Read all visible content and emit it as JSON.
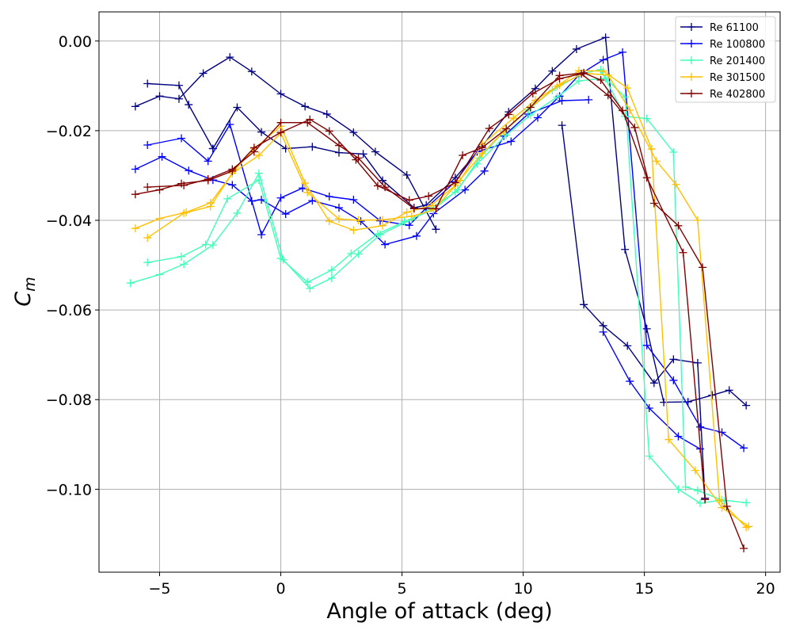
{
  "chart_data": {
    "type": "line",
    "title": "",
    "xlabel": "Angle of attack (deg)",
    "ylabel": "C",
    "ylabel_subscript": "m",
    "xlim": [
      -7.5,
      20.6
    ],
    "ylim": [
      -0.1185,
      0.0065
    ],
    "x_ticks": [
      -5,
      0,
      5,
      10,
      15,
      20
    ],
    "x_tick_labels": [
      "−5",
      "0",
      "5",
      "10",
      "15",
      "20"
    ],
    "y_ticks": [
      0.0,
      -0.02,
      -0.04,
      -0.06,
      -0.08,
      -0.1
    ],
    "y_tick_labels": [
      "0.00",
      "−0.02",
      "−0.04",
      "−0.06",
      "−0.08",
      "−0.10"
    ],
    "grid": true,
    "legend_position": "top-right",
    "marker": "plus",
    "series": [
      {
        "name": "Re 61100",
        "color": "#000080",
        "branches": [
          {
            "x": [
              -5.5,
              -4.2,
              -3.8,
              -2.8
            ],
            "y": [
              -0.0095,
              -0.0099,
              -0.0142,
              -0.024
            ]
          },
          {
            "x": [
              -6.0,
              -5.0,
              -4.2,
              -3.2,
              -2.1,
              -1.2,
              0.0,
              1.0,
              1.9,
              3.0,
              3.9,
              5.2,
              6.4
            ],
            "y": [
              -0.0146,
              -0.0123,
              -0.0129,
              -0.0072,
              -0.0036,
              -0.0068,
              -0.0118,
              -0.0146,
              -0.0163,
              -0.0204,
              -0.0247,
              -0.0299,
              -0.042
            ]
          },
          {
            "x": [
              -2.8,
              -1.8,
              -0.8,
              0.2,
              1.3,
              2.4,
              3.4,
              4.2,
              5.5,
              6.0,
              7.2,
              8.3,
              9.4,
              10.5,
              11.2,
              12.2,
              13.4,
              14.2,
              15.1,
              15.8,
              16.8,
              17.8,
              18.5,
              19.2
            ],
            "y": [
              -0.024,
              -0.0148,
              -0.0203,
              -0.024,
              -0.0236,
              -0.0249,
              -0.0252,
              -0.0311,
              -0.0372,
              -0.0366,
              -0.0305,
              -0.0235,
              -0.0158,
              -0.0106,
              -0.0067,
              -0.0018,
              0.0008,
              -0.0465,
              -0.0642,
              -0.0806,
              -0.0805,
              -0.079,
              -0.0779,
              -0.0813
            ]
          },
          {
            "x": [
              11.6,
              12.5,
              13.3,
              14.3,
              15.4,
              16.2,
              17.2,
              17.5
            ],
            "y": [
              -0.0188,
              -0.0588,
              -0.0635,
              -0.068,
              -0.0763,
              -0.071,
              -0.0718,
              -0.102
            ]
          }
        ]
      },
      {
        "name": "Re 100800",
        "color": "#0000ff",
        "branches": [
          {
            "x": [
              -6.0,
              -4.9,
              -3.8,
              -2.8,
              -2.0,
              -1.2,
              -0.8,
              0.2,
              1.3,
              2.4,
              3.3,
              4.3,
              5.6,
              6.3,
              7.6,
              8.4,
              9.2,
              10.2,
              11.6,
              12.7
            ],
            "y": [
              -0.0286,
              -0.0258,
              -0.0289,
              -0.031,
              -0.0321,
              -0.0357,
              -0.0354,
              -0.0386,
              -0.0356,
              -0.0372,
              -0.0402,
              -0.0454,
              -0.0435,
              -0.0385,
              -0.0332,
              -0.029,
              -0.0212,
              -0.0163,
              -0.0133,
              -0.0131
            ]
          },
          {
            "x": [
              -5.5,
              -4.1,
              -3.0,
              -2.1,
              -0.8,
              0.0,
              0.9,
              2.0,
              3.0,
              4.1,
              5.3,
              6.0,
              7.2,
              8.1,
              9.5,
              10.6,
              11.5,
              12.3,
              13.3,
              14.1,
              15.1,
              16.2,
              17.3,
              18.2,
              19.1
            ],
            "y": [
              -0.0232,
              -0.0217,
              -0.0268,
              -0.0186,
              -0.0432,
              -0.035,
              -0.0328,
              -0.0347,
              -0.0354,
              -0.0401,
              -0.0411,
              -0.0372,
              -0.0314,
              -0.0247,
              -0.0224,
              -0.0171,
              -0.0123,
              -0.0076,
              -0.0042,
              -0.0025,
              -0.0679,
              -0.0757,
              -0.0861,
              -0.0873,
              -0.0908
            ]
          },
          {
            "x": [
              13.3,
              14.4,
              15.2,
              16.4,
              17.3
            ],
            "y": [
              -0.0649,
              -0.0759,
              -0.0819,
              -0.0882,
              -0.091
            ]
          }
        ]
      },
      {
        "name": "Re 201400",
        "color": "#40ffb7",
        "branches": [
          {
            "x": [
              -6.2,
              -5.0,
              -4.0,
              -2.8,
              -1.8,
              -0.9,
              0.1,
              1.2,
              2.1,
              3.2,
              4.1,
              5.4,
              6.2,
              7.2,
              8.1,
              9.3,
              10.3,
              11.4,
              12.3,
              13.4,
              14.2,
              15.2,
              16.4,
              17.3,
              18.2,
              19.2
            ],
            "y": [
              -0.054,
              -0.0521,
              -0.0498,
              -0.0455,
              -0.0384,
              -0.0295,
              -0.0488,
              -0.0552,
              -0.0529,
              -0.0475,
              -0.0432,
              -0.0398,
              -0.0373,
              -0.0337,
              -0.0274,
              -0.021,
              -0.0165,
              -0.0125,
              -0.0089,
              -0.0083,
              -0.0125,
              -0.0926,
              -0.1,
              -0.1031,
              -0.1024,
              -0.103
            ]
          },
          {
            "x": [
              -5.5,
              -4.1,
              -3.1,
              -2.2,
              -0.9,
              0.0,
              1.1,
              2.1,
              2.9,
              4.0,
              5.1,
              6.3,
              7.3,
              8.2,
              9.2,
              10.2,
              11.2,
              12.4,
              13.2,
              14.2,
              15.1,
              16.2,
              16.7,
              17.2,
              18.3
            ],
            "y": [
              -0.0494,
              -0.0481,
              -0.0454,
              -0.0352,
              -0.031,
              -0.0485,
              -0.0538,
              -0.0511,
              -0.0474,
              -0.043,
              -0.0403,
              -0.0376,
              -0.0332,
              -0.0261,
              -0.0202,
              -0.0154,
              -0.011,
              -0.0073,
              -0.0064,
              -0.0168,
              -0.0173,
              -0.0248,
              -0.0995,
              -0.1003,
              -0.1026
            ]
          }
        ]
      },
      {
        "name": "Re 301500",
        "color": "#ffc000",
        "branches": [
          {
            "x": [
              -6.0,
              -5.0,
              -3.9,
              -2.9,
              -1.9,
              -1.1,
              0.0,
              1.0,
              2.0,
              3.0,
              4.2,
              5.2,
              6.2,
              7.2,
              8.3,
              9.2,
              10.3,
              11.4,
              12.3,
              13.3,
              14.3,
              15.3,
              16.0,
              17.1,
              18.2,
              19.3
            ],
            "y": [
              -0.0418,
              -0.0396,
              -0.0382,
              -0.0361,
              -0.0288,
              -0.024,
              -0.019,
              -0.0317,
              -0.0402,
              -0.0422,
              -0.0412,
              -0.0382,
              -0.0367,
              -0.0322,
              -0.0251,
              -0.0202,
              -0.0148,
              -0.0101,
              -0.0066,
              -0.0067,
              -0.0105,
              -0.0241,
              -0.0889,
              -0.0958,
              -0.1041,
              -0.1083
            ]
          },
          {
            "x": [
              -5.5,
              -4.0,
              -2.9,
              -2.0,
              -0.9,
              0.0,
              1.1,
              2.4,
              3.2,
              4.2,
              5.4,
              6.3,
              7.4,
              8.3,
              9.6,
              10.5,
              11.5,
              12.5,
              13.5,
              14.4,
              15.5,
              16.3,
              17.2,
              18.1,
              19.2
            ],
            "y": [
              -0.0439,
              -0.0384,
              -0.0369,
              -0.0295,
              -0.0255,
              -0.0205,
              -0.0338,
              -0.0397,
              -0.04,
              -0.0399,
              -0.0391,
              -0.0377,
              -0.0311,
              -0.0231,
              -0.0172,
              -0.0132,
              -0.0098,
              -0.0072,
              -0.0076,
              -0.0154,
              -0.0268,
              -0.032,
              -0.04,
              -0.1024,
              -0.1085
            ]
          }
        ]
      },
      {
        "name": "Re 402800",
        "color": "#800000",
        "branches": [
          {
            "x": [
              -6.0,
              -5.0,
              -4.1,
              -3.0,
              -2.0,
              -1.1,
              0.0,
              1.2,
              2.0,
              3.1,
              4.0,
              5.3,
              6.1,
              7.2,
              8.6,
              9.4,
              10.4,
              11.5,
              12.4,
              13.5,
              14.6,
              15.4,
              16.4,
              17.4,
              18.4,
              19.1
            ],
            "y": [
              -0.0342,
              -0.0332,
              -0.0318,
              -0.0311,
              -0.029,
              -0.0238,
              -0.0204,
              -0.0175,
              -0.0201,
              -0.0265,
              -0.0323,
              -0.0355,
              -0.0346,
              -0.0316,
              -0.0195,
              -0.0164,
              -0.0117,
              -0.0084,
              -0.0073,
              -0.0121,
              -0.0193,
              -0.0362,
              -0.0412,
              -0.0505,
              -0.1038,
              -0.1132
            ]
          },
          {
            "x": [
              -5.5,
              -4.0,
              -3.0,
              -2.0,
              -1.1,
              0.0,
              1.1,
              2.4,
              3.2,
              4.3,
              5.5,
              6.4,
              7.5,
              8.3,
              9.3,
              10.3,
              11.5,
              12.5,
              13.2,
              14.1,
              15.1,
              16.6,
              17.5
            ],
            "y": [
              -0.0326,
              -0.0322,
              -0.0308,
              -0.0286,
              -0.0247,
              -0.0182,
              -0.0182,
              -0.0233,
              -0.0261,
              -0.0326,
              -0.0374,
              -0.0374,
              -0.0255,
              -0.0238,
              -0.0196,
              -0.0148,
              -0.0077,
              -0.0071,
              -0.0087,
              -0.0155,
              -0.0305,
              -0.0472,
              -0.1023
            ]
          }
        ]
      }
    ]
  }
}
